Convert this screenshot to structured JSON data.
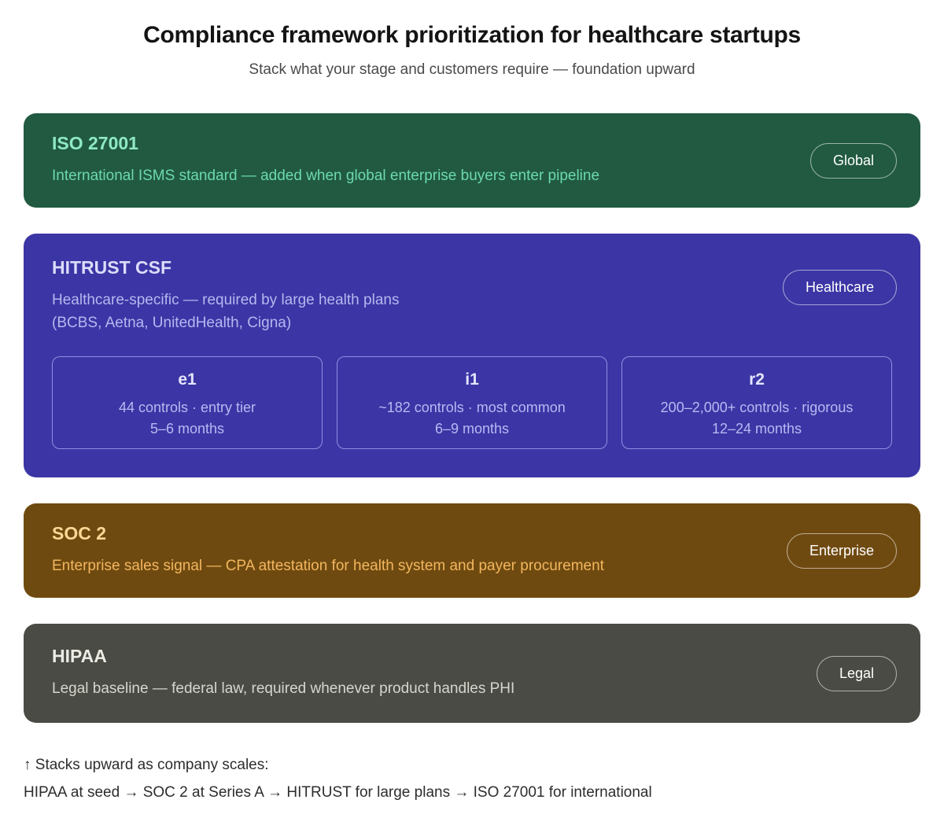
{
  "page": {
    "title": "Compliance framework prioritization for healthcare startups",
    "subtitle": "Stack what your stage and customers require — foundation upward"
  },
  "frameworks": [
    {
      "name": "ISO 27001",
      "description": "International ISMS standard — added when global enterprise buyers enter pipeline",
      "badge": "Global",
      "color_bg": "#215a41",
      "color_title": "#8fe9c5",
      "color_text": "#6cd9ad"
    },
    {
      "name": "HITRUST CSF",
      "description": "Healthcare-specific — required by large health plans",
      "description2": "(BCBS, Aetna, UnitedHealth, Cigna)",
      "badge": "Healthcare",
      "color_bg": "#3c35a5",
      "color_title": "#dcdcfa",
      "color_text": "#b4b8f0",
      "tiers": [
        {
          "name": "e1",
          "line1": "44 controls · entry tier",
          "line2": "5–6 months"
        },
        {
          "name": "i1",
          "line1": "~182 controls · most common",
          "line2": "6–9 months"
        },
        {
          "name": "r2",
          "line1": "200–2,000+ controls · rigorous",
          "line2": "12–24 months"
        }
      ]
    },
    {
      "name": "SOC 2",
      "description": "Enterprise sales signal — CPA attestation for health system and payer procurement",
      "badge": "Enterprise",
      "color_bg": "#6f4a10",
      "color_title": "#fbd795",
      "color_text": "#f2b65e"
    },
    {
      "name": "HIPAA",
      "description": "Legal baseline — federal law, required whenever product handles PHI",
      "badge": "Legal",
      "color_bg": "#4b4b45",
      "color_title": "#ecece4",
      "color_text": "#d6d6ce"
    }
  ],
  "footer": {
    "line1": "↑ Stacks upward as company scales:",
    "line2": "HIPAA at seed → SOC 2 at Series A → HITRUST for large plans → ISO 27001 for international"
  }
}
